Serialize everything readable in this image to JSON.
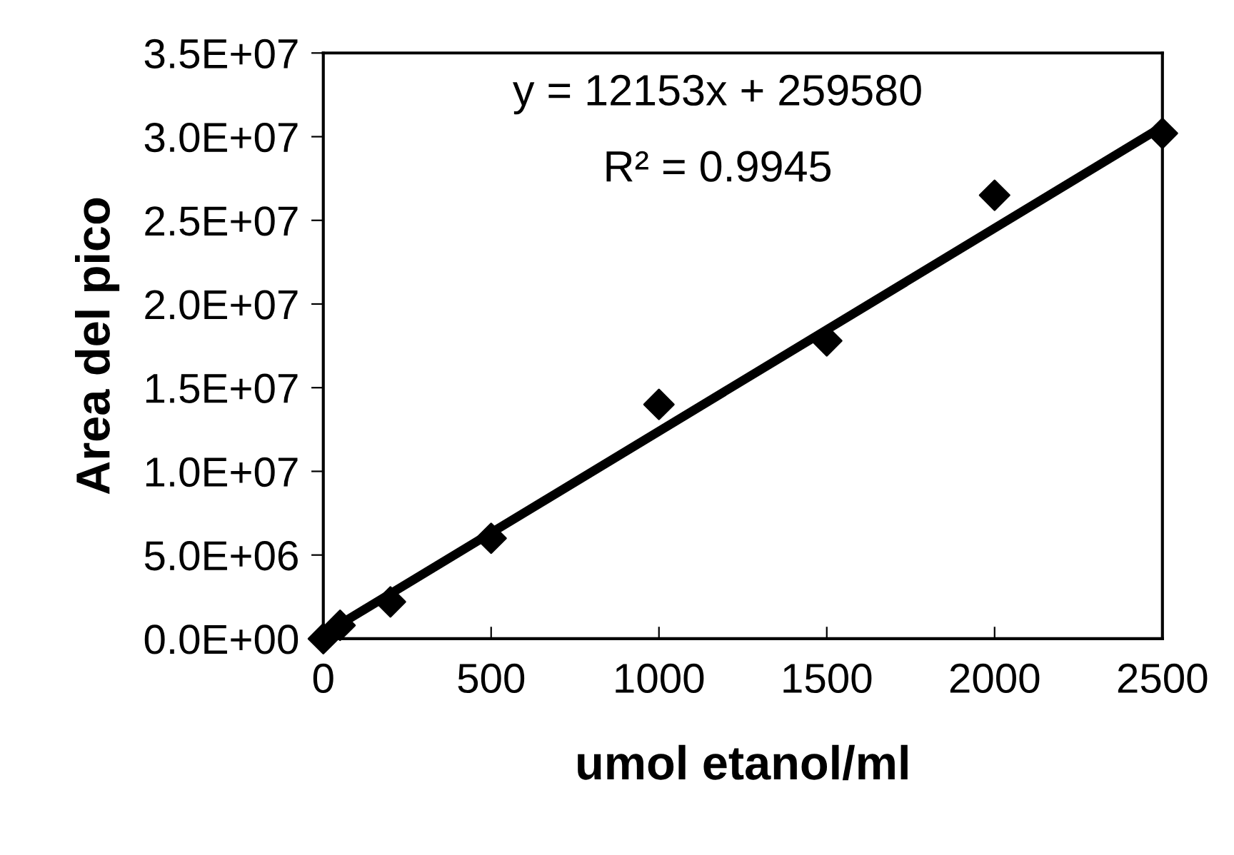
{
  "chart_data": {
    "type": "scatter",
    "xlabel": "umol etanol/ml",
    "ylabel": "Area del pico",
    "xlim": [
      0,
      2500
    ],
    "xticks": [
      0,
      500,
      1000,
      1500,
      2000,
      2500
    ],
    "ylim": [
      0,
      35000000
    ],
    "yticks": [
      {
        "value": 0,
        "label": "0.0E+00"
      },
      {
        "value": 5000000,
        "label": "5.0E+06"
      },
      {
        "value": 10000000,
        "label": "1.0E+07"
      },
      {
        "value": 15000000,
        "label": "1.5E+07"
      },
      {
        "value": 20000000,
        "label": "2.0E+07"
      },
      {
        "value": 25000000,
        "label": "2.5E+07"
      },
      {
        "value": 30000000,
        "label": "3.0E+07"
      },
      {
        "value": 35000000,
        "label": "3.5E+07"
      }
    ],
    "grid": false,
    "legend": false,
    "series": [
      {
        "color": "#000000",
        "marker": "diamond",
        "x": [
          0,
          50,
          200,
          500,
          1000,
          1500,
          2000,
          2500
        ],
        "values": [
          0,
          800000,
          2200000,
          6000000,
          14000000,
          17800000,
          26500000,
          30200000
        ]
      },
      {
        "type": "line",
        "color": "#000000",
        "marker": "none",
        "line_style": "solid",
        "x": [
          0,
          2500
        ],
        "values": [
          260000,
          30600000
        ]
      }
    ],
    "annotations": [
      "y = 12153x + 259580",
      "R² = 0.9945"
    ]
  }
}
